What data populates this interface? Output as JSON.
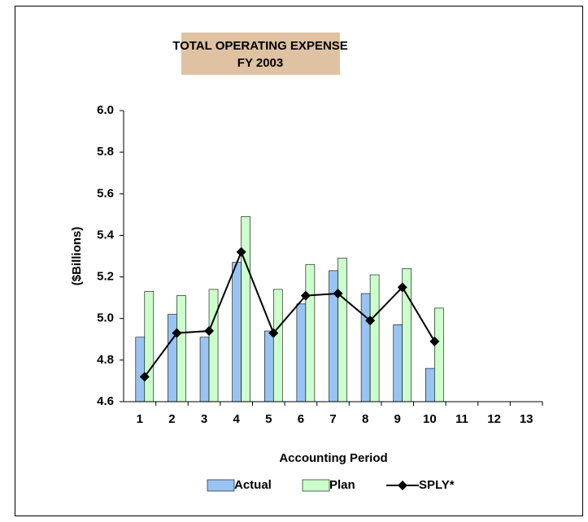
{
  "chart_data": {
    "type": "bar",
    "title": "TOTAL OPERATING EXPENSE",
    "subtitle": "FY 2003",
    "x_label": "Accounting Period",
    "y_label": "($Billions)",
    "categories": [
      "1",
      "2",
      "3",
      "4",
      "5",
      "6",
      "7",
      "8",
      "9",
      "10",
      "11",
      "12",
      "13"
    ],
    "series": [
      {
        "name": "Actual",
        "type": "bar",
        "color": "#99c3f3",
        "values": [
          4.91,
          5.02,
          4.91,
          5.27,
          4.94,
          5.07,
          5.23,
          5.12,
          4.97,
          4.76,
          null,
          null,
          null
        ]
      },
      {
        "name": "Plan",
        "type": "bar",
        "color": "#ccffcc",
        "values": [
          5.13,
          5.11,
          5.14,
          5.49,
          5.14,
          5.26,
          5.29,
          5.21,
          5.24,
          5.05,
          null,
          null,
          null
        ]
      },
      {
        "name": "SPLY*",
        "type": "line",
        "color": "#000000",
        "values": [
          4.72,
          4.93,
          4.94,
          5.32,
          4.93,
          5.11,
          5.12,
          4.99,
          5.15,
          4.89,
          null,
          null,
          null
        ]
      }
    ],
    "ylim": [
      4.6,
      6.0
    ],
    "yticks": [
      {
        "value": 4.6,
        "label": "4.6"
      },
      {
        "value": 4.8,
        "label": "4.8"
      },
      {
        "value": 5.0,
        "label": "5.0"
      },
      {
        "value": 5.2,
        "label": "5.2"
      },
      {
        "value": 5.4,
        "label": "5.4"
      },
      {
        "value": 5.6,
        "label": "5.6"
      },
      {
        "value": 5.8,
        "label": "5.8"
      },
      {
        "value": 6.0,
        "label": "6.0"
      }
    ],
    "grid": false,
    "legend": "bottom"
  }
}
